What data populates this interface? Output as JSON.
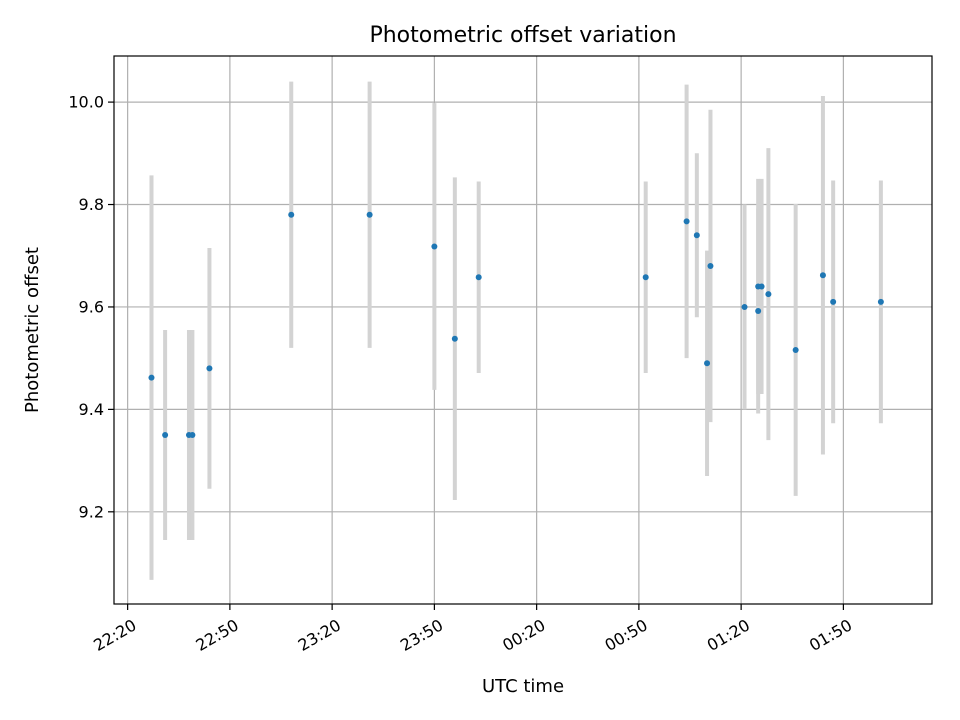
{
  "chart_data": {
    "type": "scatter",
    "title": "Photometric offset variation",
    "xlabel": "UTC time",
    "ylabel": "Photometric offset",
    "x_is_time": true,
    "x_tick_labels": [
      "22:20",
      "22:50",
      "23:20",
      "23:50",
      "00:20",
      "00:50",
      "01:20",
      "01:50"
    ],
    "y_tick_labels": [
      "9.2",
      "9.4",
      "9.6",
      "9.8",
      "10.0"
    ],
    "xlim": [
      "22:16",
      "02:16"
    ],
    "ylim": [
      9.02,
      10.09
    ],
    "grid": true,
    "colors": {
      "marker": "#1f77b4",
      "errorbar": "#d3d3d3",
      "grid": "#b0b0b0",
      "frame": "#000000"
    },
    "series": [
      {
        "points": [
          {
            "x": "22:27",
            "y": 9.462,
            "err": 0.395
          },
          {
            "x": "22:31",
            "y": 9.35,
            "err": 0.205
          },
          {
            "x": "22:38",
            "y": 9.35,
            "err": 0.205
          },
          {
            "x": "22:39",
            "y": 9.35,
            "err": 0.205
          },
          {
            "x": "22:44",
            "y": 9.48,
            "err": 0.235
          },
          {
            "x": "23:08",
            "y": 9.78,
            "err": 0.26
          },
          {
            "x": "23:31",
            "y": 9.78,
            "err": 0.26
          },
          {
            "x": "23:50",
            "y": 9.718,
            "err": 0.28
          },
          {
            "x": "23:56",
            "y": 9.538,
            "err": 0.315
          },
          {
            "x": "00:03",
            "y": 9.658,
            "err": 0.187
          },
          {
            "x": "00:52",
            "y": 9.658,
            "err": 0.187
          },
          {
            "x": "01:04",
            "y": 9.767,
            "err": 0.267
          },
          {
            "x": "01:07",
            "y": 9.74,
            "err": 0.16
          },
          {
            "x": "01:10",
            "y": 9.49,
            "err": 0.22
          },
          {
            "x": "01:11",
            "y": 9.68,
            "err": 0.305
          },
          {
            "x": "01:21",
            "y": 9.6,
            "err": 0.2
          },
          {
            "x": "01:25",
            "y": 9.592,
            "err": 0.2
          },
          {
            "x": "01:25",
            "y": 9.64,
            "err": 0.21
          },
          {
            "x": "01:26",
            "y": 9.64,
            "err": 0.21
          },
          {
            "x": "01:28",
            "y": 9.625,
            "err": 0.285
          },
          {
            "x": "01:36",
            "y": 9.516,
            "err": 0.285
          },
          {
            "x": "01:44",
            "y": 9.662,
            "err": 0.35
          },
          {
            "x": "01:47",
            "y": 9.61,
            "err": 0.237
          },
          {
            "x": "02:01",
            "y": 9.61,
            "err": 0.237
          }
        ]
      }
    ]
  }
}
